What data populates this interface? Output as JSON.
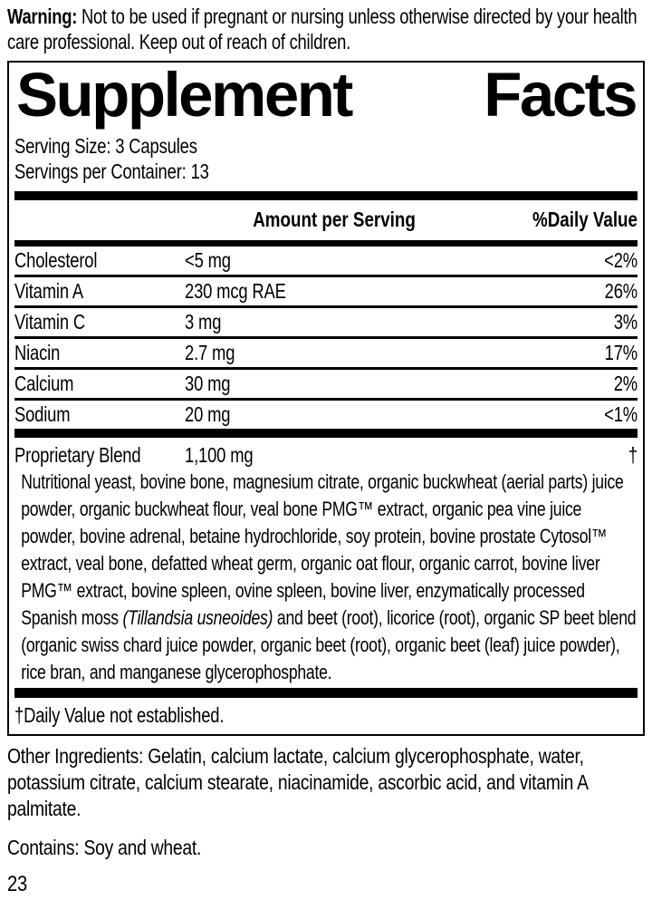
{
  "warning": {
    "label": "Warning:",
    "text": " Not to be used if pregnant or nursing unless otherwise directed by your health care professional. Keep out of reach of children."
  },
  "panel": {
    "title_word1": "Supplement",
    "title_word2": "Facts",
    "serving_size": "Serving Size: 3 Capsules",
    "servings_per_container": "Servings per Container: 13",
    "columns": {
      "amount": "Amount per Serving",
      "daily_value": "%Daily Value"
    },
    "rows": [
      {
        "name": "Cholesterol",
        "amount": "<5 mg",
        "dv": "<2%"
      },
      {
        "name": "Vitamin A",
        "amount": "230 mcg RAE",
        "dv": "26%"
      },
      {
        "name": "Vitamin C",
        "amount": "3 mg",
        "dv": "3%"
      },
      {
        "name": "Niacin",
        "amount": "2.7 mg",
        "dv": "17%"
      },
      {
        "name": "Calcium",
        "amount": "30 mg",
        "dv": "2%"
      },
      {
        "name": "Sodium",
        "amount": "20 mg",
        "dv": "<1%"
      }
    ],
    "proprietary": {
      "name": "Proprietary Blend",
      "amount": "1,100 mg",
      "dv": "†",
      "description_part1": "Nutritional yeast, bovine bone, magnesium citrate, organic buckwheat (aerial parts) juice powder, organic buckwheat flour, veal bone PMG™ extract, organic pea vine juice powder, bovine adrenal, betaine hydrochloride, soy protein, bovine prostate Cytosol™ extract, veal bone, defatted wheat germ, organic oat flour, organic carrot, bovine liver PMG™ extract, bovine spleen, ovine spleen, bovine liver, enzymatically processed Spanish moss ",
      "description_italic": "(Tillandsia usneoides)",
      "description_part2": " and beet (root), licorice (root), organic SP beet blend (organic swiss chard juice powder, organic beet (root), organic beet (leaf) juice powder), rice bran, and manganese glycerophosphate."
    },
    "footnote": "†Daily Value not established."
  },
  "other_ingredients": "Other Ingredients: Gelatin, calcium lactate, calcium glycerophosphate, water, potassium citrate, calcium stearate, niacinamide, ascorbic acid, and vitamin A palmitate.",
  "contains": "Contains: Soy and wheat.",
  "page_number": "23"
}
